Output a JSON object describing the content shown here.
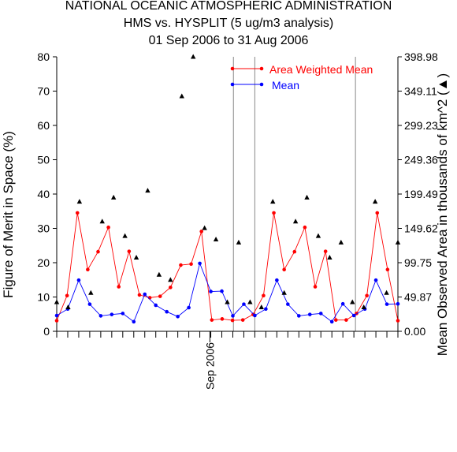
{
  "chart_data": {
    "type": "line",
    "title": [
      "NATIONAL OCEANIC ATMOSPHERIC ADMINISTRATION",
      "HMS vs. HYSPLIT (5 ug/m3 analysis)",
      "01 Sep 2006 to 31 Aug 2006"
    ],
    "ylabel": "Figure of Merit in Space (%)",
    "y2label": "Mean Observed Area in thousands of km^2 (▲)",
    "xtick_labels": [
      "Sep 2006"
    ],
    "ylim": [
      0,
      80
    ],
    "yticks": [
      "0",
      "10",
      "20",
      "30",
      "40",
      "50",
      "60",
      "70",
      "80"
    ],
    "y2lim": [
      0,
      398.98
    ],
    "y2ticks": [
      "0.00",
      "49.87",
      "99.75",
      "149.62",
      "199.49",
      "249.36",
      "299.23",
      "349.11",
      "398.98"
    ],
    "legend_position": "top-right",
    "colors": {
      "area_weighted_mean": "#ff0000",
      "mean": "#0000ff",
      "observed_area": "#000000",
      "axis": "#000000",
      "divider": "#888888"
    },
    "series": [
      {
        "name": "Area Weighted Mean",
        "values": [
          3.1,
          10.4,
          34.5,
          18.0,
          23.2,
          30.3,
          13.0,
          23.3,
          10.6,
          9.8,
          10.2,
          12.8,
          19.3,
          19.6,
          29.1,
          3.3,
          3.6,
          3.2,
          3.3,
          4.9,
          10.4,
          34.5,
          18.0,
          23.2,
          30.3,
          13.0,
          23.3,
          3.3,
          3.3,
          5.2,
          10.4,
          34.5,
          18.0,
          3.1
        ]
      },
      {
        "name": "Mean",
        "values": [
          4.6,
          6.5,
          14.9,
          7.9,
          4.5,
          4.9,
          5.2,
          2.8,
          10.8,
          7.6,
          5.7,
          4.3,
          6.9,
          19.8,
          11.6,
          11.7,
          4.5,
          7.9,
          4.6,
          6.5,
          14.9,
          7.9,
          4.5,
          4.9,
          5.2,
          2.8,
          8.0,
          4.6,
          6.5,
          14.9,
          7.9,
          8.0
        ]
      },
      {
        "name": "Mean Observed Area",
        "unit": "thousands of km^2",
        "values": [
          42.4,
          34.9,
          188.5,
          55.9,
          159.6,
          194.5,
          138.6,
          107.2,
          204.5,
          82.3,
          74.8,
          341.6,
          398.98,
          150.1,
          133.6,
          42.4,
          129.1,
          42.4,
          34.9,
          188.5,
          55.9,
          159.6,
          194.5,
          138.6,
          107.2,
          129.1,
          42.4,
          34.9,
          188.5,
          55.9,
          129.1
        ]
      }
    ]
  }
}
